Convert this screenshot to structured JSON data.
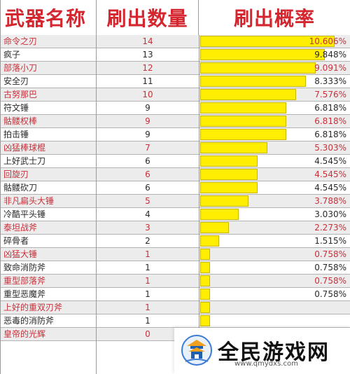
{
  "header": {
    "col_name": "武器名称",
    "col_count": "刷出数量",
    "col_rate": "刷出概率"
  },
  "colors": {
    "header_text": "#d4262f",
    "bar_fill": "#ffee00",
    "red_text": "#c8303a",
    "dark_text": "#2a2a2a",
    "alt_row": "#ececec"
  },
  "chart_data": {
    "type": "table",
    "columns": [
      "武器名称",
      "刷出数量",
      "刷出概率"
    ],
    "bar_max_percent": 10.606,
    "rows": [
      {
        "name": "命令之刃",
        "count": "14",
        "percent_value": 10.606,
        "percent": "10.606%",
        "style": "red"
      },
      {
        "name": "疯子",
        "count": "13",
        "percent_value": 9.848,
        "percent": "9.848%",
        "style": "dark"
      },
      {
        "name": "部落小刀",
        "count": "12",
        "percent_value": 9.091,
        "percent": "9.091%",
        "style": "red"
      },
      {
        "name": "安全刃",
        "count": "11",
        "percent_value": 8.333,
        "percent": "8.333%",
        "style": "dark"
      },
      {
        "name": "古努那巴",
        "count": "10",
        "percent_value": 7.576,
        "percent": "7.576%",
        "style": "red"
      },
      {
        "name": "符文锤",
        "count": "9",
        "percent_value": 6.818,
        "percent": "6.818%",
        "style": "dark"
      },
      {
        "name": "骷髅权棒",
        "count": "9",
        "percent_value": 6.818,
        "percent": "6.818%",
        "style": "red"
      },
      {
        "name": "拍击锤",
        "count": "9",
        "percent_value": 6.818,
        "percent": "6.818%",
        "style": "dark"
      },
      {
        "name": "凶猛棒球棍",
        "count": "7",
        "percent_value": 5.303,
        "percent": "5.303%",
        "style": "red"
      },
      {
        "name": "上好武士刀",
        "count": "6",
        "percent_value": 4.545,
        "percent": "4.545%",
        "style": "dark"
      },
      {
        "name": "回旋刃",
        "count": "6",
        "percent_value": 4.545,
        "percent": "4.545%",
        "style": "red"
      },
      {
        "name": "骷髅砍刀",
        "count": "6",
        "percent_value": 4.545,
        "percent": "4.545%",
        "style": "dark"
      },
      {
        "name": "非凡扁头大锤",
        "count": "5",
        "percent_value": 3.788,
        "percent": "3.788%",
        "style": "red"
      },
      {
        "name": "冷酷平头锤",
        "count": "4",
        "percent_value": 3.03,
        "percent": "3.030%",
        "style": "dark"
      },
      {
        "name": "泰坦战斧",
        "count": "3",
        "percent_value": 2.273,
        "percent": "2.273%",
        "style": "red"
      },
      {
        "name": "碎骨者",
        "count": "2",
        "percent_value": 1.515,
        "percent": "1.515%",
        "style": "dark"
      },
      {
        "name": "凶猛大锤",
        "count": "1",
        "percent_value": 0.758,
        "percent": "0.758%",
        "style": "red"
      },
      {
        "name": "致命消防斧",
        "count": "1",
        "percent_value": 0.758,
        "percent": "0.758%",
        "style": "dark"
      },
      {
        "name": "重型部落斧",
        "count": "1",
        "percent_value": 0.758,
        "percent": "0.758%",
        "style": "red"
      },
      {
        "name": "重型恶魔斧",
        "count": "1",
        "percent_value": 0.758,
        "percent": "0.758%",
        "style": "dark"
      },
      {
        "name": "上好的重双刃斧",
        "count": "1",
        "percent_value": 0.758,
        "percent": "",
        "style": "red"
      },
      {
        "name": "恶毒的消防斧",
        "count": "1",
        "percent_value": 0.758,
        "percent": "",
        "style": "dark"
      },
      {
        "name": "皇帝的光辉",
        "count": "0",
        "percent_value": 0,
        "percent": "",
        "style": "red"
      }
    ]
  },
  "watermark": {
    "title": "全民游戏网",
    "url": "www.qmydxs.com",
    "logo_icon": "pagoda-logo-icon"
  }
}
